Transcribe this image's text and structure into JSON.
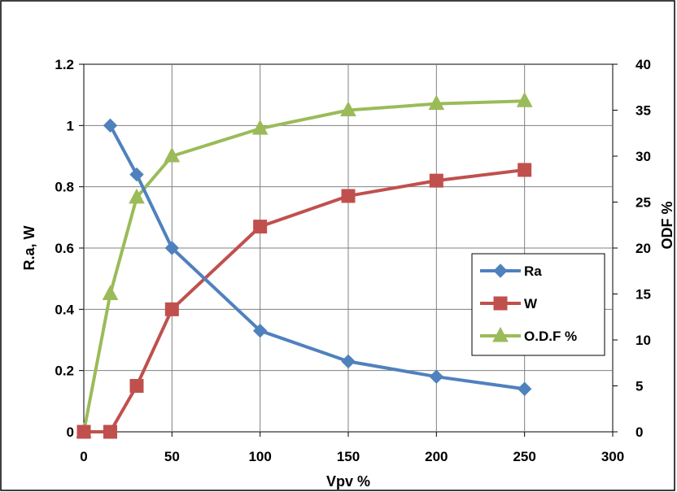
{
  "chart_data": {
    "type": "line",
    "xlabel": "Vpv %",
    "ylabel": "R.a, W",
    "y2label": "ODF %",
    "xlim": [
      0,
      300
    ],
    "ylim": [
      0,
      1.2
    ],
    "y2lim": [
      0,
      40
    ],
    "grid": true,
    "legend_position": "right-middle",
    "x_ticks": [
      "0",
      "50",
      "100",
      "150",
      "200",
      "250",
      "300"
    ],
    "y_ticks": [
      "0",
      "0.2",
      "0.4",
      "0.6",
      "0.8",
      "1",
      "1.2"
    ],
    "y2_ticks": [
      "0",
      "5",
      "10",
      "15",
      "20",
      "25",
      "30",
      "35",
      "40"
    ],
    "series": [
      {
        "name": "Ra",
        "axis": "left",
        "color": "#4F81BD",
        "marker": "diamond",
        "x": [
          15,
          30,
          50,
          100,
          150,
          200,
          250
        ],
        "y": [
          1.0,
          0.84,
          0.6,
          0.33,
          0.23,
          0.18,
          0.14
        ]
      },
      {
        "name": "W",
        "axis": "left",
        "color": "#C0504D",
        "marker": "square",
        "x": [
          0,
          15,
          30,
          50,
          100,
          150,
          200,
          250
        ],
        "y": [
          0,
          0,
          0.15,
          0.4,
          0.67,
          0.77,
          0.82,
          0.855
        ]
      },
      {
        "name": "O.D.F %",
        "axis": "right",
        "color": "#9BBB59",
        "marker": "triangle",
        "x": [
          0,
          15,
          30,
          50,
          100,
          150,
          200,
          250
        ],
        "y": [
          0,
          15,
          25.5,
          30,
          33,
          35,
          35.7,
          36
        ]
      }
    ],
    "y2label_color": "#C00000"
  }
}
